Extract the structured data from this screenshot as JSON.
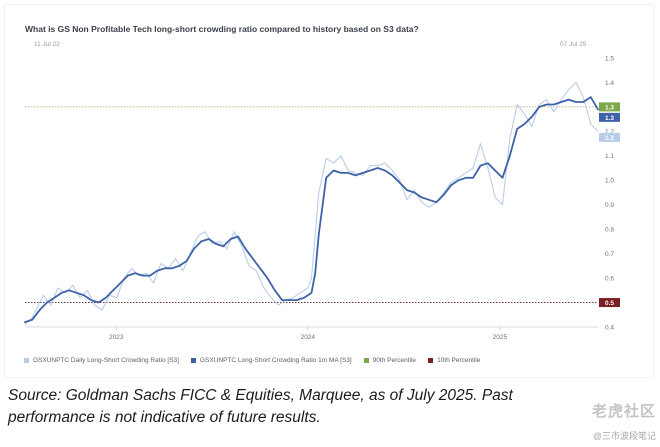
{
  "title": "What is GS Non Profitable Tech long-short crowding ratio compared to history based on S3 data?",
  "date_start": "11 Jul 22",
  "date_end": "07 Jul 25",
  "footer": "Source: Goldman Sachs FICC & Equities, Marquee, as of July 2025. Past performance is not indicative of future results.",
  "watermark": {
    "main": "老虎社区",
    "sub": "@三市波段笔记"
  },
  "colors": {
    "daily": "#b9cdea",
    "ma": "#3e62a8",
    "p90": "#7aa84a",
    "p10": "#7a1f22",
    "p90_badge_text": "#ffffff"
  },
  "chart_data": {
    "type": "line",
    "title": "What is GS Non Profitable Tech long-short crowding ratio compared to history based on S3 data?",
    "x_start": "2022-07-11",
    "x_end": "2025-07-07",
    "x_ticks": [
      {
        "label": "2023",
        "date": "2023-01-01"
      },
      {
        "label": "2024",
        "date": "2024-01-01"
      },
      {
        "label": "2025",
        "date": "2025-01-01"
      }
    ],
    "ylim": [
      0.4,
      1.5
    ],
    "y_ticks": [
      "0.4",
      "0.5",
      "0.6",
      "0.7",
      "0.8",
      "0.9",
      "1.0",
      "1.1",
      "1.2",
      "1.3",
      "1.4",
      "1.5"
    ],
    "grid": false,
    "legend_position": "bottom",
    "series": [
      {
        "name": "GSXUNPTC Daily Long-Short Crowding Ratio [S3]",
        "role": "daily",
        "points": [
          [
            "2022-07-11",
            0.41
          ],
          [
            "2022-07-25",
            0.44
          ],
          [
            "2022-08-08",
            0.5
          ],
          [
            "2022-08-15",
            0.53
          ],
          [
            "2022-08-29",
            0.49
          ],
          [
            "2022-09-12",
            0.56
          ],
          [
            "2022-09-26",
            0.54
          ],
          [
            "2022-10-10",
            0.57
          ],
          [
            "2022-10-24",
            0.52
          ],
          [
            "2022-11-07",
            0.55
          ],
          [
            "2022-11-21",
            0.49
          ],
          [
            "2022-12-05",
            0.47
          ],
          [
            "2022-12-19",
            0.53
          ],
          [
            "2023-01-02",
            0.52
          ],
          [
            "2023-01-16",
            0.6
          ],
          [
            "2023-01-30",
            0.64
          ],
          [
            "2023-02-13",
            0.61
          ],
          [
            "2023-02-27",
            0.62
          ],
          [
            "2023-03-13",
            0.58
          ],
          [
            "2023-03-27",
            0.66
          ],
          [
            "2023-04-10",
            0.64
          ],
          [
            "2023-04-24",
            0.68
          ],
          [
            "2023-05-08",
            0.63
          ],
          [
            "2023-05-22",
            0.7
          ],
          [
            "2023-06-05",
            0.77
          ],
          [
            "2023-06-19",
            0.79
          ],
          [
            "2023-07-03",
            0.74
          ],
          [
            "2023-07-17",
            0.75
          ],
          [
            "2023-07-31",
            0.72
          ],
          [
            "2023-08-14",
            0.79
          ],
          [
            "2023-08-28",
            0.73
          ],
          [
            "2023-09-11",
            0.65
          ],
          [
            "2023-09-25",
            0.63
          ],
          [
            "2023-10-09",
            0.56
          ],
          [
            "2023-10-23",
            0.52
          ],
          [
            "2023-11-06",
            0.49
          ],
          [
            "2023-11-20",
            0.51
          ],
          [
            "2023-12-04",
            0.52
          ],
          [
            "2023-12-18",
            0.54
          ],
          [
            "2024-01-01",
            0.56
          ],
          [
            "2024-01-08",
            0.6
          ],
          [
            "2024-01-22",
            0.95
          ],
          [
            "2024-02-05",
            1.09
          ],
          [
            "2024-02-19",
            1.07
          ],
          [
            "2024-03-04",
            1.1
          ],
          [
            "2024-03-18",
            1.04
          ],
          [
            "2024-04-01",
            1.03
          ],
          [
            "2024-04-15",
            1.02
          ],
          [
            "2024-04-29",
            1.06
          ],
          [
            "2024-05-13",
            1.06
          ],
          [
            "2024-05-27",
            1.07
          ],
          [
            "2024-06-10",
            1.04
          ],
          [
            "2024-06-24",
            1.0
          ],
          [
            "2024-07-08",
            0.92
          ],
          [
            "2024-07-22",
            0.96
          ],
          [
            "2024-08-05",
            0.91
          ],
          [
            "2024-08-19",
            0.89
          ],
          [
            "2024-09-02",
            0.91
          ],
          [
            "2024-09-16",
            0.95
          ],
          [
            "2024-09-30",
            0.99
          ],
          [
            "2024-10-14",
            1.01
          ],
          [
            "2024-10-28",
            1.03
          ],
          [
            "2024-11-11",
            1.05
          ],
          [
            "2024-11-25",
            1.15
          ],
          [
            "2024-12-09",
            1.05
          ],
          [
            "2024-12-23",
            0.93
          ],
          [
            "2025-01-06",
            0.9
          ],
          [
            "2025-01-20",
            1.17
          ],
          [
            "2025-02-03",
            1.31
          ],
          [
            "2025-02-17",
            1.27
          ],
          [
            "2025-03-03",
            1.22
          ],
          [
            "2025-03-17",
            1.31
          ],
          [
            "2025-03-31",
            1.33
          ],
          [
            "2025-04-14",
            1.28
          ],
          [
            "2025-04-28",
            1.33
          ],
          [
            "2025-05-12",
            1.37
          ],
          [
            "2025-05-26",
            1.4
          ],
          [
            "2025-06-09",
            1.34
          ],
          [
            "2025-06-23",
            1.23
          ],
          [
            "2025-07-07",
            1.2
          ]
        ]
      },
      {
        "name": "GSXUNPTC Long-Short Crowding Ratio 1m MA [S3]",
        "role": "ma",
        "points": [
          [
            "2022-07-11",
            0.42
          ],
          [
            "2022-07-25",
            0.43
          ],
          [
            "2022-08-08",
            0.47
          ],
          [
            "2022-08-22",
            0.5
          ],
          [
            "2022-09-05",
            0.52
          ],
          [
            "2022-09-19",
            0.54
          ],
          [
            "2022-10-03",
            0.55
          ],
          [
            "2022-10-17",
            0.54
          ],
          [
            "2022-10-31",
            0.53
          ],
          [
            "2022-11-14",
            0.51
          ],
          [
            "2022-11-28",
            0.5
          ],
          [
            "2022-12-12",
            0.52
          ],
          [
            "2022-12-26",
            0.55
          ],
          [
            "2023-01-09",
            0.58
          ],
          [
            "2023-01-23",
            0.61
          ],
          [
            "2023-02-06",
            0.62
          ],
          [
            "2023-02-20",
            0.61
          ],
          [
            "2023-03-06",
            0.61
          ],
          [
            "2023-03-20",
            0.63
          ],
          [
            "2023-04-03",
            0.64
          ],
          [
            "2023-04-17",
            0.64
          ],
          [
            "2023-05-01",
            0.65
          ],
          [
            "2023-05-15",
            0.67
          ],
          [
            "2023-05-29",
            0.72
          ],
          [
            "2023-06-12",
            0.75
          ],
          [
            "2023-06-26",
            0.76
          ],
          [
            "2023-07-10",
            0.74
          ],
          [
            "2023-07-24",
            0.73
          ],
          [
            "2023-08-07",
            0.76
          ],
          [
            "2023-08-21",
            0.77
          ],
          [
            "2023-09-04",
            0.72
          ],
          [
            "2023-09-18",
            0.68
          ],
          [
            "2023-10-02",
            0.64
          ],
          [
            "2023-10-16",
            0.6
          ],
          [
            "2023-10-30",
            0.55
          ],
          [
            "2023-11-13",
            0.51
          ],
          [
            "2023-11-27",
            0.51
          ],
          [
            "2023-12-11",
            0.51
          ],
          [
            "2023-12-25",
            0.52
          ],
          [
            "2024-01-08",
            0.54
          ],
          [
            "2024-01-15",
            0.62
          ],
          [
            "2024-01-22",
            0.78
          ],
          [
            "2024-02-05",
            1.01
          ],
          [
            "2024-02-19",
            1.04
          ],
          [
            "2024-03-04",
            1.03
          ],
          [
            "2024-03-18",
            1.03
          ],
          [
            "2024-04-01",
            1.02
          ],
          [
            "2024-04-15",
            1.03
          ],
          [
            "2024-04-29",
            1.04
          ],
          [
            "2024-05-13",
            1.05
          ],
          [
            "2024-05-27",
            1.04
          ],
          [
            "2024-06-10",
            1.02
          ],
          [
            "2024-06-24",
            0.99
          ],
          [
            "2024-07-08",
            0.96
          ],
          [
            "2024-07-22",
            0.95
          ],
          [
            "2024-08-05",
            0.93
          ],
          [
            "2024-08-19",
            0.92
          ],
          [
            "2024-09-02",
            0.91
          ],
          [
            "2024-09-16",
            0.94
          ],
          [
            "2024-09-30",
            0.98
          ],
          [
            "2024-10-14",
            1.0
          ],
          [
            "2024-10-28",
            1.01
          ],
          [
            "2024-11-11",
            1.01
          ],
          [
            "2024-11-25",
            1.06
          ],
          [
            "2024-12-09",
            1.07
          ],
          [
            "2024-12-23",
            1.04
          ],
          [
            "2025-01-06",
            1.01
          ],
          [
            "2025-01-20",
            1.1
          ],
          [
            "2025-02-03",
            1.21
          ],
          [
            "2025-02-17",
            1.23
          ],
          [
            "2025-03-03",
            1.26
          ],
          [
            "2025-03-17",
            1.3
          ],
          [
            "2025-03-31",
            1.31
          ],
          [
            "2025-04-14",
            1.31
          ],
          [
            "2025-04-28",
            1.32
          ],
          [
            "2025-05-12",
            1.33
          ],
          [
            "2025-05-26",
            1.32
          ],
          [
            "2025-06-09",
            1.32
          ],
          [
            "2025-06-23",
            1.34
          ],
          [
            "2025-07-07",
            1.29
          ]
        ]
      },
      {
        "name": "90th Percentile",
        "role": "p90",
        "value": 1.3,
        "badge": "1.3"
      },
      {
        "name": "10th Percentile",
        "role": "p10",
        "value": 0.5,
        "badge": "0.5"
      }
    ],
    "end_badges": [
      {
        "series": "ma",
        "label": "1.3"
      },
      {
        "series": "daily",
        "label": "1.2"
      }
    ]
  }
}
